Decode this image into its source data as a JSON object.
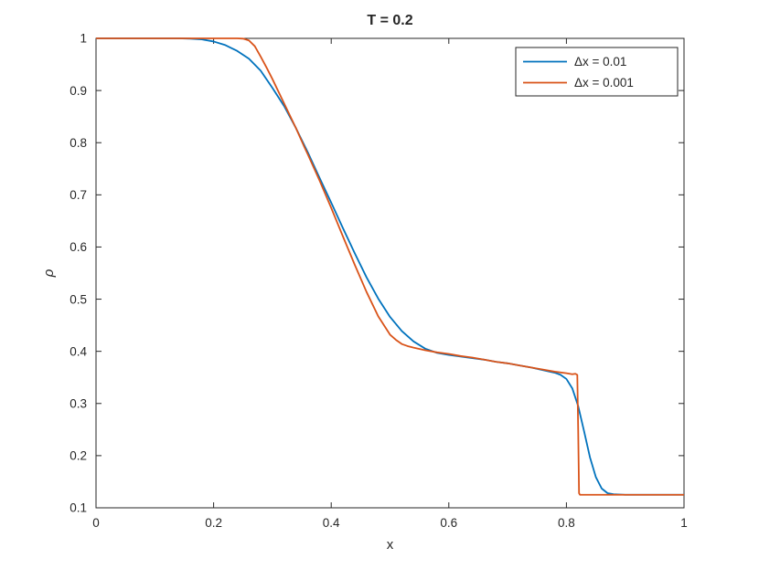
{
  "figure": {
    "background": "#ffffff"
  },
  "chart_data": {
    "type": "line",
    "title": "T = 0.2",
    "xlabel": "x",
    "ylabel": "ρ",
    "xlim": [
      0,
      1
    ],
    "ylim": [
      0.1,
      1
    ],
    "grid": false,
    "axis_color": "#262626",
    "xticks": [
      0,
      0.2,
      0.4,
      0.6,
      0.8,
      1
    ],
    "xtick_labels": [
      "0",
      "0.2",
      "0.4",
      "0.6",
      "0.8",
      "1"
    ],
    "yticks": [
      0.1,
      0.2,
      0.3,
      0.4,
      0.5,
      0.6,
      0.7,
      0.8,
      0.9,
      1
    ],
    "ytick_labels": [
      "0.1",
      "0.2",
      "0.3",
      "0.4",
      "0.5",
      "0.6",
      "0.7",
      "0.8",
      "0.9",
      "1"
    ],
    "legend": {
      "position": "top-right",
      "border": true
    },
    "series": [
      {
        "name": "Δx = 0.01",
        "color": "#0072BD",
        "x": [
          0,
          0.1,
          0.14,
          0.16,
          0.18,
          0.2,
          0.22,
          0.24,
          0.26,
          0.28,
          0.3,
          0.32,
          0.34,
          0.36,
          0.38,
          0.4,
          0.42,
          0.44,
          0.46,
          0.48,
          0.5,
          0.52,
          0.54,
          0.56,
          0.58,
          0.6,
          0.62,
          0.64,
          0.66,
          0.68,
          0.7,
          0.72,
          0.74,
          0.76,
          0.78,
          0.79,
          0.8,
          0.81,
          0.82,
          0.83,
          0.84,
          0.85,
          0.86,
          0.87,
          0.88,
          0.9,
          0.95,
          1
        ],
        "y": [
          1,
          1,
          1,
          0.9995,
          0.998,
          0.994,
          0.987,
          0.976,
          0.961,
          0.938,
          0.905,
          0.87,
          0.828,
          0.782,
          0.733,
          0.685,
          0.636,
          0.588,
          0.542,
          0.501,
          0.466,
          0.439,
          0.419,
          0.405,
          0.397,
          0.393,
          0.39,
          0.387,
          0.384,
          0.38,
          0.377,
          0.373,
          0.369,
          0.364,
          0.359,
          0.355,
          0.347,
          0.329,
          0.295,
          0.247,
          0.197,
          0.159,
          0.137,
          0.128,
          0.126,
          0.125,
          0.125,
          0.125
        ]
      },
      {
        "name": "Δx = 0.001",
        "color": "#D95319",
        "x": [
          0,
          0.2,
          0.24,
          0.25,
          0.26,
          0.27,
          0.28,
          0.29,
          0.3,
          0.32,
          0.34,
          0.355,
          0.36,
          0.38,
          0.4,
          0.42,
          0.44,
          0.46,
          0.48,
          0.5,
          0.51,
          0.52,
          0.53,
          0.54,
          0.56,
          0.58,
          0.6,
          0.62,
          0.64,
          0.66,
          0.68,
          0.7,
          0.72,
          0.74,
          0.76,
          0.78,
          0.8,
          0.81,
          0.815,
          0.8185,
          0.82,
          0.8215,
          0.823,
          0.83,
          0.85,
          0.9,
          1
        ],
        "y": [
          1,
          1,
          1,
          0.9995,
          0.996,
          0.985,
          0.965,
          0.944,
          0.922,
          0.875,
          0.828,
          0.79,
          0.778,
          0.728,
          0.675,
          0.62,
          0.566,
          0.514,
          0.467,
          0.432,
          0.422,
          0.414,
          0.41,
          0.407,
          0.402,
          0.398,
          0.395,
          0.391,
          0.388,
          0.384,
          0.38,
          0.377,
          0.373,
          0.369,
          0.365,
          0.361,
          0.358,
          0.356,
          0.357,
          0.355,
          0.25,
          0.128,
          0.125,
          0.125,
          0.125,
          0.125,
          0.125
        ]
      }
    ]
  }
}
